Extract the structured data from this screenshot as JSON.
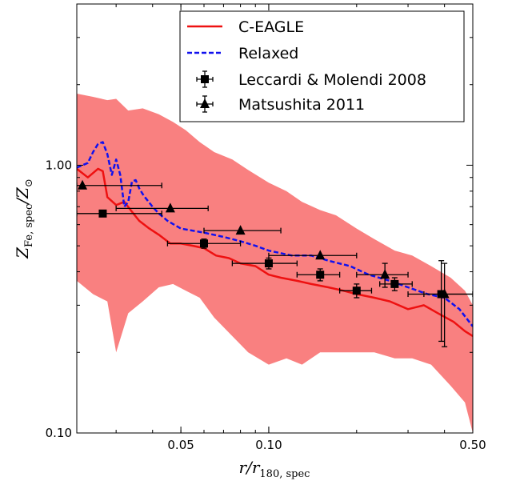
{
  "chart_data": {
    "type": "line",
    "title": "",
    "xlabel_html": "r/r<sub>180, spec</sub>",
    "ylabel_html": "Z<sub>Fe, spec</sub>/Z<sub>⊙</sub>",
    "xlabel": "r/r180,spec",
    "ylabel": "ZFe,spec/Z⊙",
    "x_scale": "log",
    "y_scale": "log",
    "xlim": [
      0.022,
      0.5
    ],
    "ylim": [
      0.1,
      4.0
    ],
    "x_ticks": [
      0.05,
      0.1,
      0.5
    ],
    "x_tick_labels": [
      "0.05",
      "0.10",
      "0.50"
    ],
    "y_ticks": [
      0.1,
      1.0
    ],
    "y_tick_labels": [
      "0.10",
      "1.00"
    ],
    "legend_position": "top-right",
    "band": {
      "name": "C-EAGLE scatter",
      "color": "#f98080",
      "x": [
        0.022,
        0.025,
        0.028,
        0.03,
        0.033,
        0.037,
        0.042,
        0.047,
        0.052,
        0.058,
        0.065,
        0.075,
        0.085,
        0.1,
        0.115,
        0.13,
        0.15,
        0.17,
        0.2,
        0.23,
        0.27,
        0.31,
        0.36,
        0.42,
        0.47,
        0.5
      ],
      "upper": [
        1.85,
        1.8,
        1.75,
        1.77,
        1.6,
        1.63,
        1.55,
        1.45,
        1.35,
        1.22,
        1.12,
        1.05,
        0.96,
        0.86,
        0.8,
        0.73,
        0.68,
        0.65,
        0.58,
        0.53,
        0.48,
        0.46,
        0.42,
        0.38,
        0.34,
        0.3
      ],
      "lower": [
        0.37,
        0.33,
        0.31,
        0.2,
        0.28,
        0.31,
        0.35,
        0.36,
        0.34,
        0.32,
        0.27,
        0.23,
        0.2,
        0.18,
        0.19,
        0.18,
        0.2,
        0.2,
        0.2,
        0.2,
        0.19,
        0.19,
        0.18,
        0.15,
        0.13,
        0.1
      ]
    },
    "series": [
      {
        "name": "C-EAGLE",
        "color": "#ee1111",
        "style": "solid",
        "x": [
          0.022,
          0.024,
          0.026,
          0.027,
          0.028,
          0.03,
          0.032,
          0.034,
          0.036,
          0.039,
          0.042,
          0.046,
          0.05,
          0.055,
          0.06,
          0.066,
          0.073,
          0.08,
          0.09,
          0.1,
          0.11,
          0.125,
          0.14,
          0.16,
          0.18,
          0.2,
          0.23,
          0.26,
          0.3,
          0.34,
          0.38,
          0.43,
          0.47,
          0.5
        ],
        "y": [
          0.97,
          0.9,
          0.97,
          0.95,
          0.76,
          0.71,
          0.73,
          0.67,
          0.62,
          0.58,
          0.55,
          0.51,
          0.51,
          0.5,
          0.49,
          0.46,
          0.45,
          0.43,
          0.42,
          0.39,
          0.38,
          0.37,
          0.36,
          0.35,
          0.34,
          0.33,
          0.32,
          0.31,
          0.29,
          0.3,
          0.28,
          0.26,
          0.24,
          0.23
        ]
      },
      {
        "name": "Relaxed",
        "color": "#1111ee",
        "style": "dashed",
        "x": [
          0.022,
          0.024,
          0.025,
          0.026,
          0.027,
          0.028,
          0.029,
          0.03,
          0.031,
          0.032,
          0.033,
          0.034,
          0.035,
          0.036,
          0.037,
          0.038,
          0.04,
          0.042,
          0.045,
          0.05,
          0.06,
          0.07,
          0.08,
          0.09,
          0.1,
          0.12,
          0.14,
          0.16,
          0.19,
          0.22,
          0.26,
          0.3,
          0.35,
          0.4,
          0.45,
          0.5
        ],
        "y": [
          0.98,
          1.02,
          1.12,
          1.2,
          1.22,
          1.1,
          0.92,
          1.05,
          0.92,
          0.7,
          0.73,
          0.87,
          0.88,
          0.82,
          0.78,
          0.75,
          0.7,
          0.66,
          0.62,
          0.58,
          0.56,
          0.54,
          0.52,
          0.5,
          0.48,
          0.46,
          0.46,
          0.44,
          0.42,
          0.39,
          0.37,
          0.35,
          0.33,
          0.32,
          0.29,
          0.25
        ]
      }
    ],
    "points": [
      {
        "name": "Leccardi & Molendi 2008",
        "marker": "square",
        "color": "#000000",
        "x": [
          0.027,
          0.06,
          0.1,
          0.15,
          0.2,
          0.27,
          0.39
        ],
        "y": [
          0.66,
          0.51,
          0.43,
          0.39,
          0.34,
          0.36,
          0.33
        ],
        "x_lo": [
          0.022,
          0.045,
          0.075,
          0.125,
          0.175,
          0.24,
          0.34
        ],
        "x_hi": [
          0.043,
          0.08,
          0.125,
          0.175,
          0.225,
          0.31,
          0.5
        ],
        "y_lo": [
          0.66,
          0.49,
          0.41,
          0.37,
          0.32,
          0.34,
          0.22
        ],
        "y_hi": [
          0.66,
          0.53,
          0.45,
          0.41,
          0.36,
          0.38,
          0.44
        ]
      },
      {
        "name": "Matsushita 2011",
        "marker": "triangle",
        "color": "#000000",
        "x": [
          0.023,
          0.046,
          0.08,
          0.15,
          0.25,
          0.4
        ],
        "y": [
          0.84,
          0.69,
          0.57,
          0.46,
          0.39,
          0.33
        ],
        "x_lo": [
          0.022,
          0.03,
          0.06,
          0.1,
          0.2,
          0.3
        ],
        "x_hi": [
          0.043,
          0.062,
          0.11,
          0.2,
          0.3,
          0.5
        ],
        "y_lo": [
          0.84,
          0.69,
          0.57,
          0.46,
          0.35,
          0.21
        ],
        "y_hi": [
          0.84,
          0.69,
          0.57,
          0.46,
          0.43,
          0.43
        ]
      }
    ],
    "legend": [
      "C-EAGLE",
      "Relaxed",
      "Leccardi & Molendi 2008",
      "Matsushita 2011"
    ]
  }
}
